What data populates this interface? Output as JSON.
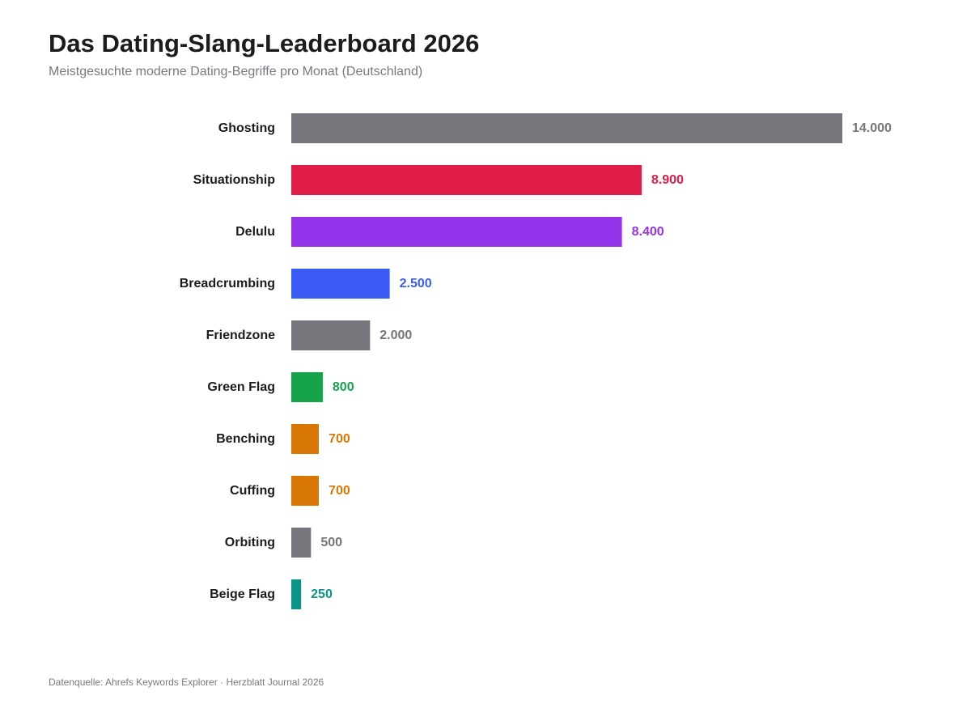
{
  "header": {
    "title": "Das Dating-Slang-Leaderboard 2026",
    "subtitle": "Meistgesuchte moderne Dating-Begriffe pro Monat (Deutschland)"
  },
  "footer": {
    "source": "Datenquelle: Ahrefs Keywords Explorer · Herzblatt Journal 2026"
  },
  "chart_data": {
    "type": "bar",
    "orientation": "horizontal",
    "title": "Das Dating-Slang-Leaderboard 2026",
    "subtitle": "Meistgesuchte moderne Dating-Begriffe pro Monat (Deutschland)",
    "xlim": [
      0,
      14000
    ],
    "grid": false,
    "legend": "none",
    "categories": [
      "Ghosting",
      "Situationship",
      "Delulu",
      "Breadcrumbing",
      "Friendzone",
      "Green Flag",
      "Benching",
      "Cuffing",
      "Orbiting",
      "Beige Flag"
    ],
    "values": [
      14000,
      8900,
      8400,
      2500,
      2000,
      800,
      700,
      700,
      500,
      250
    ],
    "value_labels": [
      "14.000",
      "8.900",
      "8.400",
      "2.500",
      "2.000",
      "800",
      "700",
      "700",
      "500",
      "250"
    ],
    "bar_colors": [
      "#77757b",
      "#e01c48",
      "#9333ea",
      "#3b5bf5",
      "#77757b",
      "#16a34a",
      "#d97706",
      "#d97706",
      "#77757b",
      "#0d9488"
    ],
    "label_colors": [
      "#77757b",
      "#e01c48",
      "#9333ea",
      "#3b5bf5",
      "#77757b",
      "#16a34a",
      "#d97706",
      "#d97706",
      "#77757b",
      "#0d9488"
    ]
  }
}
